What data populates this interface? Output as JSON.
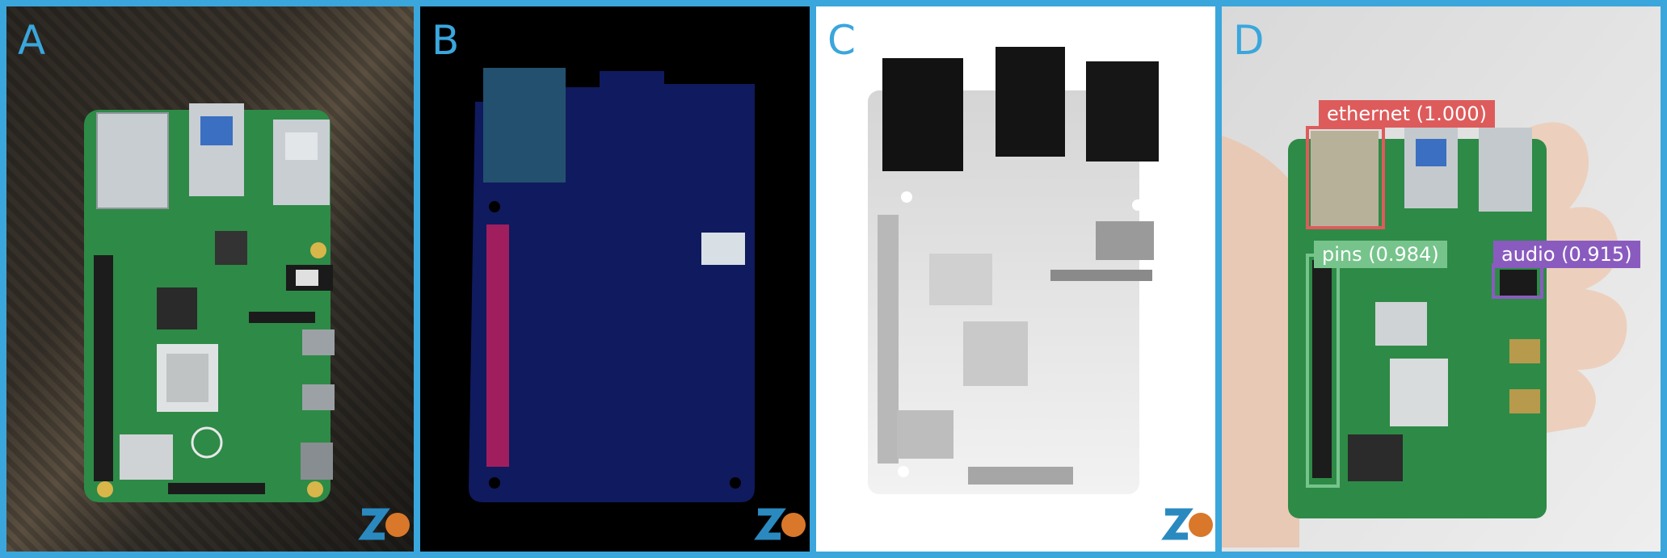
{
  "figure": {
    "panels": [
      {
        "id": "A",
        "label": "A"
      },
      {
        "id": "B",
        "label": "B"
      },
      {
        "id": "C",
        "label": "C"
      },
      {
        "id": "D",
        "label": "D"
      }
    ],
    "detections": [
      {
        "name": "ethernet",
        "label": "ethernet (1.000)",
        "color": "#de5b5b"
      },
      {
        "name": "pins",
        "label": "pins (0.984)",
        "color": "#76c48b"
      },
      {
        "name": "audio",
        "label": "audio (0.915)",
        "color": "#8a5bbf"
      }
    ],
    "colors": {
      "border": "#3aa6dc",
      "label": "#3aa6dc",
      "pcb": "#2e8a47",
      "segmentation_board": "#101a5e",
      "segmentation_ethernet": "#22506e",
      "segmentation_pins": "#a01e5e",
      "segmentation_audio": "#d8e0e6"
    }
  }
}
